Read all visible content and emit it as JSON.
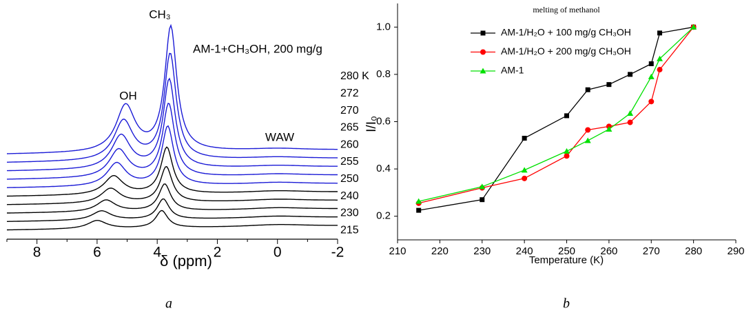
{
  "chart_data": [
    {
      "type": "spectra",
      "xlabel": "δ (ppm)",
      "xlim": [
        9,
        -2
      ],
      "xticks": [
        8,
        6,
        4,
        2,
        0,
        -2
      ],
      "annotations": [
        "OH",
        "CH₃",
        "WAW",
        "AM-1+CH₃OH, 200 mg/g"
      ],
      "caption": "a",
      "series": [
        {
          "name": "280 K",
          "color": "#1a1ad6",
          "peaks_x": [
            5.05,
            3.55
          ]
        },
        {
          "name": "272",
          "color": "#1a1ad6",
          "peaks_x": [
            5.12,
            3.57
          ]
        },
        {
          "name": "270",
          "color": "#1a1ad6",
          "peaks_x": [
            5.2,
            3.6
          ]
        },
        {
          "name": "265",
          "color": "#1a1ad6",
          "peaks_x": [
            5.28,
            3.62
          ]
        },
        {
          "name": "260",
          "color": "#1a1ad6",
          "peaks_x": [
            5.35,
            3.65
          ]
        },
        {
          "name": "255",
          "color": "#000000",
          "peaks_x": [
            5.45,
            3.68
          ]
        },
        {
          "name": "250",
          "color": "#000000",
          "peaks_x": [
            5.55,
            3.7
          ]
        },
        {
          "name": "240",
          "color": "#000000",
          "peaks_x": [
            5.7,
            3.75
          ]
        },
        {
          "name": "230",
          "color": "#000000",
          "peaks_x": [
            5.85,
            3.8
          ]
        },
        {
          "name": "215",
          "color": "#000000",
          "peaks_x": [
            6.0,
            3.85
          ]
        }
      ]
    },
    {
      "type": "line",
      "title": "melting of methanol",
      "xlabel": "Temperature (K)",
      "ylabel": "I/I₀",
      "caption": "b",
      "xlim": [
        210,
        290
      ],
      "xticks": [
        210,
        220,
        230,
        240,
        250,
        260,
        270,
        280,
        290
      ],
      "ylim": [
        0.1,
        1.1
      ],
      "yticks": [
        0.2,
        0.4,
        0.6,
        0.8,
        {
          "value": 1,
          "label": "1.0"
        }
      ],
      "legend": "upper left",
      "x": [
        215,
        230,
        240,
        250,
        255,
        260,
        265,
        270,
        272,
        280
      ],
      "series": [
        {
          "name": "AM-1/H₂O + 100 mg/g CH₃OH",
          "color": "#000000",
          "marker": "square",
          "values": [
            0.225,
            0.27,
            0.53,
            0.625,
            0.735,
            0.757,
            0.8,
            0.845,
            0.975,
            1.0
          ]
        },
        {
          "name": "AM-1/H₂O + 200 mg/g CH₃OH",
          "color": "#ff0000",
          "marker": "circle",
          "values": [
            0.255,
            0.32,
            0.36,
            0.455,
            0.565,
            0.58,
            0.597,
            0.685,
            0.82,
            1.0
          ]
        },
        {
          "name": "AM-1",
          "color": "#00e000",
          "marker": "triangle",
          "values": [
            0.263,
            0.325,
            0.395,
            0.475,
            0.52,
            0.568,
            0.635,
            0.79,
            0.866,
            1.0
          ]
        }
      ]
    }
  ]
}
